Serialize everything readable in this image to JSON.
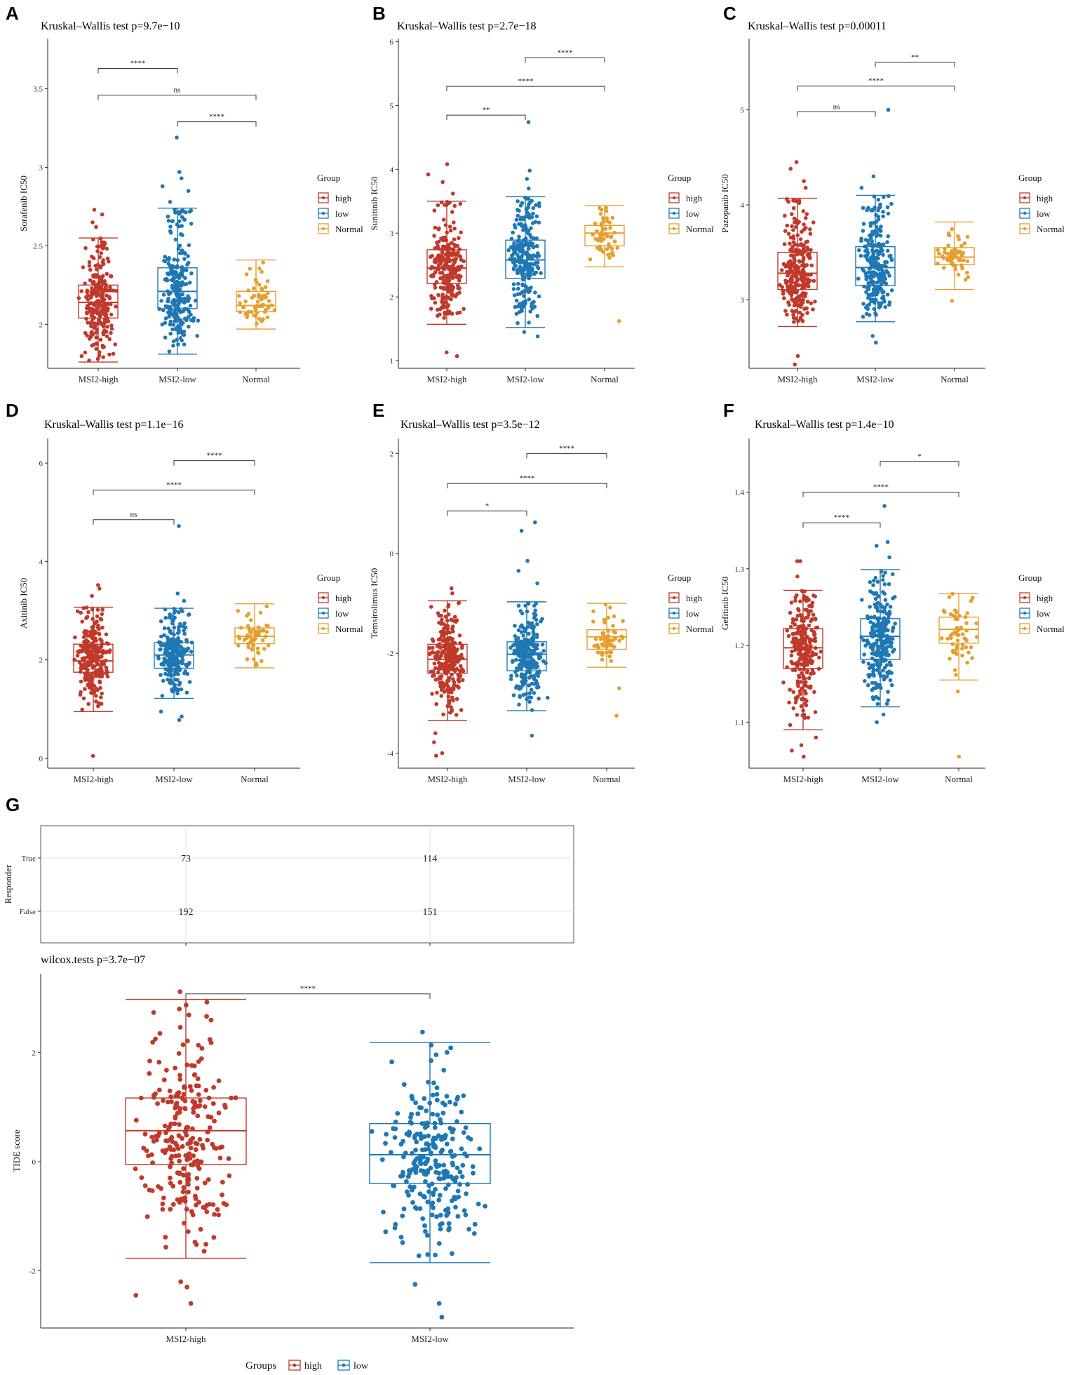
{
  "colors": {
    "high": "#C0392B",
    "low": "#1F78B4",
    "Normal": "#E69F2E"
  },
  "chart_data": [
    {
      "panel": "A",
      "type": "boxplot",
      "title": "Kruskal–Wallis test p=9.7e−10",
      "ylabel": "Sorafenib IC50",
      "ylim": [
        1.72,
        3.82
      ],
      "yticks": [
        2.0,
        2.5,
        3.0,
        3.5
      ],
      "categories": [
        "MSI2-high",
        "MSI2-low",
        "Normal"
      ],
      "groups": [
        "high",
        "low",
        "Normal"
      ],
      "stats": [
        {
          "min": 1.76,
          "q1": 2.04,
          "median": 2.14,
          "q3": 2.25,
          "max": 2.55,
          "n": 265,
          "out_lo": [
            1.77,
            1.78
          ],
          "out_hi": [
            2.62,
            2.65,
            2.7,
            2.73
          ]
        },
        {
          "min": 1.81,
          "q1": 2.1,
          "median": 2.21,
          "q3": 2.36,
          "max": 2.74,
          "n": 265,
          "out_lo": [],
          "out_hi": [
            2.78,
            2.85,
            2.88,
            2.93,
            2.97,
            3.19
          ]
        },
        {
          "min": 1.97,
          "q1": 2.08,
          "median": 2.12,
          "q3": 2.21,
          "max": 2.41,
          "n": 60,
          "out_lo": [],
          "out_hi": []
        }
      ],
      "sig": [
        {
          "label": "****",
          "from": 1,
          "to": 2,
          "y": 3.29,
          "row": 2
        },
        {
          "label": "ns",
          "from": 0,
          "to": 2,
          "y": 3.46,
          "row": 1
        },
        {
          "label": "****",
          "from": 0,
          "to": 1,
          "y": 3.63,
          "row": 0
        }
      ],
      "legend": {
        "title": "Group",
        "items": [
          "high",
          "low",
          "Normal"
        ]
      }
    },
    {
      "panel": "B",
      "type": "boxplot",
      "title": "Kruskal–Wallis test p=2.7e−18",
      "ylabel": "Sunitinib IC50",
      "ylim": [
        0.88,
        6.05
      ],
      "yticks": [
        1,
        2,
        3,
        4,
        5,
        6
      ],
      "categories": [
        "MSI2-high",
        "MSI2-low",
        "Normal"
      ],
      "groups": [
        "high",
        "low",
        "Normal"
      ],
      "stats": [
        {
          "min": 1.57,
          "q1": 2.21,
          "median": 2.45,
          "q3": 2.74,
          "max": 3.5,
          "n": 265,
          "out_lo": [
            1.07,
            1.13
          ],
          "out_hi": [
            3.62,
            3.8,
            3.92,
            4.08
          ]
        },
        {
          "min": 1.52,
          "q1": 2.29,
          "median": 2.58,
          "q3": 2.89,
          "max": 3.57,
          "n": 265,
          "out_lo": [
            1.38,
            1.45
          ],
          "out_hi": [
            3.7,
            3.85,
            3.98,
            4.74
          ]
        },
        {
          "min": 2.47,
          "q1": 2.8,
          "median": 3.0,
          "q3": 3.12,
          "max": 3.43,
          "n": 60,
          "out_lo": [
            1.62
          ],
          "out_hi": []
        }
      ],
      "sig": [
        {
          "label": "****",
          "from": 1,
          "to": 2,
          "y": 5.75,
          "row": 2
        },
        {
          "label": "****",
          "from": 0,
          "to": 2,
          "y": 5.3,
          "row": 1
        },
        {
          "label": "**",
          "from": 0,
          "to": 1,
          "y": 4.85,
          "row": 0
        }
      ],
      "legend": {
        "title": "Group",
        "items": [
          "high",
          "low",
          "Normal"
        ]
      }
    },
    {
      "panel": "C",
      "type": "boxplot",
      "title": "Kruskal–Wallis test p=0.00011",
      "ylabel": "Pazopanib IC50",
      "ylim": [
        2.28,
        5.75
      ],
      "yticks": [
        3,
        4,
        5
      ],
      "categories": [
        "MSI2-high",
        "MSI2-low",
        "Normal"
      ],
      "groups": [
        "high",
        "low",
        "Normal"
      ],
      "stats": [
        {
          "min": 2.72,
          "q1": 3.11,
          "median": 3.28,
          "q3": 3.5,
          "max": 4.07,
          "n": 265,
          "out_lo": [
            2.32,
            2.41
          ],
          "out_hi": [
            4.18,
            4.25,
            4.38,
            4.45
          ]
        },
        {
          "min": 2.77,
          "q1": 3.15,
          "median": 3.34,
          "q3": 3.56,
          "max": 4.1,
          "n": 265,
          "out_lo": [
            2.55,
            2.62
          ],
          "out_hi": [
            4.18,
            4.3,
            5.0
          ]
        },
        {
          "min": 3.11,
          "q1": 3.37,
          "median": 3.45,
          "q3": 3.55,
          "max": 3.82,
          "n": 60,
          "out_lo": [
            2.99
          ],
          "out_hi": []
        }
      ],
      "sig": [
        {
          "label": "**",
          "from": 1,
          "to": 2,
          "y": 5.5,
          "row": 2
        },
        {
          "label": "****",
          "from": 0,
          "to": 2,
          "y": 5.25,
          "row": 1
        },
        {
          "label": "ns",
          "from": 0,
          "to": 1,
          "y": 4.98,
          "row": 0
        }
      ],
      "legend": {
        "title": "Group",
        "items": [
          "high",
          "low",
          "Normal"
        ]
      }
    },
    {
      "panel": "D",
      "type": "boxplot",
      "title": "Kruskal–Wallis test p=1.1e−16",
      "ylabel": "Axitinib IC50",
      "ylim": [
        -0.2,
        6.5
      ],
      "yticks": [
        0,
        2,
        4,
        6
      ],
      "categories": [
        "MSI2-high",
        "MSI2-low",
        "Normal"
      ],
      "groups": [
        "high",
        "low",
        "Normal"
      ],
      "stats": [
        {
          "min": 0.95,
          "q1": 1.75,
          "median": 1.98,
          "q3": 2.32,
          "max": 3.07,
          "n": 265,
          "out_lo": [
            0.05
          ],
          "out_hi": [
            3.3,
            3.45,
            3.52
          ]
        },
        {
          "min": 1.22,
          "q1": 1.83,
          "median": 2.1,
          "q3": 2.35,
          "max": 3.05,
          "n": 265,
          "out_lo": [
            0.78,
            0.85,
            0.95
          ],
          "out_hi": [
            3.2,
            3.35,
            4.72
          ]
        },
        {
          "min": 1.84,
          "q1": 2.33,
          "median": 2.48,
          "q3": 2.65,
          "max": 3.14,
          "n": 60,
          "out_lo": [],
          "out_hi": []
        }
      ],
      "sig": [
        {
          "label": "****",
          "from": 1,
          "to": 2,
          "y": 6.05,
          "row": 2
        },
        {
          "label": "****",
          "from": 0,
          "to": 2,
          "y": 5.45,
          "row": 1
        },
        {
          "label": "ns",
          "from": 0,
          "to": 1,
          "y": 4.85,
          "row": 0
        }
      ],
      "legend": {
        "title": "Group",
        "items": [
          "high",
          "low",
          "Normal"
        ]
      }
    },
    {
      "panel": "E",
      "type": "boxplot",
      "title": "Kruskal–Wallis test p=3.5e−12",
      "ylabel": "Temsirolimus IC50",
      "ylim": [
        -4.3,
        2.3
      ],
      "yticks": [
        -4,
        -2,
        0,
        2
      ],
      "categories": [
        "MSI2-high",
        "MSI2-low",
        "Normal"
      ],
      "groups": [
        "high",
        "low",
        "Normal"
      ],
      "stats": [
        {
          "min": -3.35,
          "q1": -2.4,
          "median": -2.12,
          "q3": -1.82,
          "max": -0.95,
          "n": 265,
          "out_lo": [
            -3.6,
            -3.78,
            -4.0,
            -4.05
          ],
          "out_hi": [
            -0.7,
            -0.8
          ]
        },
        {
          "min": -3.15,
          "q1": -2.35,
          "median": -2.02,
          "q3": -1.77,
          "max": -0.97,
          "n": 265,
          "out_lo": [
            -3.65
          ],
          "out_hi": [
            -0.6,
            -0.35,
            -0.15,
            0.45,
            0.62
          ]
        },
        {
          "min": -2.28,
          "q1": -1.92,
          "median": -1.67,
          "q3": -1.53,
          "max": -1.0,
          "n": 60,
          "out_lo": [
            -2.7,
            -3.25
          ],
          "out_hi": []
        }
      ],
      "sig": [
        {
          "label": "****",
          "from": 1,
          "to": 2,
          "y": 2.0,
          "row": 2
        },
        {
          "label": "****",
          "from": 0,
          "to": 2,
          "y": 1.4,
          "row": 1
        },
        {
          "label": "*",
          "from": 0,
          "to": 1,
          "y": 0.85,
          "row": 0
        }
      ],
      "legend": {
        "title": "Group",
        "items": [
          "high",
          "low",
          "Normal"
        ]
      }
    },
    {
      "panel": "F",
      "type": "boxplot",
      "title": "Kruskal–Wallis test p=1.4e−10",
      "ylabel": "Gefitinib IC50",
      "ylim": [
        1.04,
        1.47
      ],
      "yticks": [
        1.1,
        1.2,
        1.3,
        1.4
      ],
      "categories": [
        "MSI2-high",
        "MSI2-low",
        "Normal"
      ],
      "groups": [
        "high",
        "low",
        "Normal"
      ],
      "stats": [
        {
          "min": 1.09,
          "q1": 1.17,
          "median": 1.197,
          "q3": 1.222,
          "max": 1.272,
          "n": 265,
          "out_lo": [
            1.055,
            1.063,
            1.07,
            1.08
          ],
          "out_hi": [
            1.29,
            1.31,
            1.31
          ]
        },
        {
          "min": 1.12,
          "q1": 1.182,
          "median": 1.212,
          "q3": 1.235,
          "max": 1.299,
          "n": 265,
          "out_lo": [
            1.1,
            1.11
          ],
          "out_hi": [
            1.315,
            1.33,
            1.335,
            1.382
          ]
        },
        {
          "min": 1.155,
          "q1": 1.203,
          "median": 1.221,
          "q3": 1.237,
          "max": 1.268,
          "n": 60,
          "out_lo": [
            1.14,
            1.055
          ],
          "out_hi": []
        }
      ],
      "sig": [
        {
          "label": "*",
          "from": 1,
          "to": 2,
          "y": 1.44,
          "row": 2
        },
        {
          "label": "****",
          "from": 0,
          "to": 2,
          "y": 1.4,
          "row": 1
        },
        {
          "label": "****",
          "from": 0,
          "to": 1,
          "y": 1.36,
          "row": 0
        }
      ],
      "legend": {
        "title": "Group",
        "items": [
          "high",
          "low",
          "Normal"
        ]
      }
    },
    {
      "panel": "G",
      "type": "table",
      "ylabel": "Responder",
      "rows": [
        "True",
        "False"
      ],
      "columns": [
        "MSI2-high",
        "MSI2-low"
      ],
      "values": [
        [
          73,
          114
        ],
        [
          192,
          151
        ]
      ]
    },
    {
      "panel": "G",
      "type": "boxplot",
      "title": "wilcox.tests p=3.7e−07",
      "ylabel": "TIDE score",
      "ylim": [
        -3.05,
        3.45
      ],
      "yticks": [
        -2,
        0,
        2
      ],
      "categories": [
        "MSI2-high",
        "MSI2-low"
      ],
      "groups": [
        "high",
        "low"
      ],
      "stats": [
        {
          "min": -1.77,
          "q1": -0.05,
          "median": 0.57,
          "q3": 1.17,
          "max": 2.98,
          "n": 265,
          "out_lo": [
            -2.2,
            -2.3,
            -2.45,
            -2.6
          ],
          "out_hi": [
            3.12
          ]
        },
        {
          "min": -1.85,
          "q1": -0.4,
          "median": 0.13,
          "q3": 0.7,
          "max": 2.19,
          "n": 265,
          "out_lo": [
            -2.25,
            -2.6,
            -2.85
          ],
          "out_hi": [
            2.38
          ]
        }
      ],
      "sig": [
        {
          "label": "****",
          "from": 0,
          "to": 1,
          "y": 3.08,
          "row": 0
        }
      ],
      "legend": {
        "title": "Groups",
        "items": [
          "high",
          "low"
        ]
      }
    }
  ]
}
